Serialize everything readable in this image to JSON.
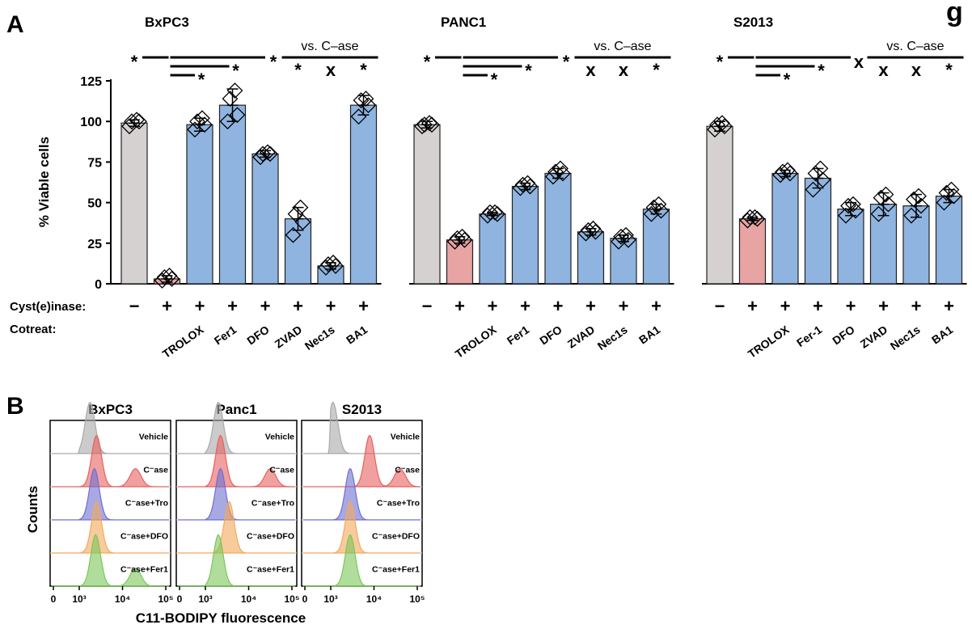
{
  "panel_a_letter": "A",
  "panel_b_letter": "B",
  "corner_glyph": "g",
  "bar_colors": {
    "control": "#d5d1d0",
    "caseonly": "#e8a3a3",
    "cotreat": "#8fb4e0"
  },
  "row_labels": {
    "cyst": "Cyst(e)inase:",
    "cotreat": "Cotreat:"
  },
  "cyst_symbols": [
    "−",
    "+",
    "+",
    "+",
    "+",
    "+",
    "+",
    "+"
  ],
  "vs_label": "vs. C–ase",
  "chart_data": [
    {
      "type": "bar",
      "title": "BxPC3",
      "ylabel": "% Viable cells",
      "ylim": [
        0,
        125
      ],
      "yticks": [
        "0",
        "25",
        "50",
        "75",
        "100",
        "125"
      ],
      "categories": [
        "",
        "",
        "TROLOX",
        "Fer1",
        "DFO",
        "ZVAD",
        "Nec1s",
        "BA1"
      ],
      "values": [
        99,
        3,
        98,
        110,
        80,
        40,
        11,
        110
      ],
      "errors": [
        2,
        2,
        4,
        10,
        2,
        7,
        2,
        6
      ],
      "points": [
        [
          97,
          100,
          100,
          101
        ],
        [
          2,
          3,
          4,
          5
        ],
        [
          95,
          98,
          100,
          102
        ],
        [
          100,
          104,
          114,
          119
        ],
        [
          78,
          80,
          80,
          81
        ],
        [
          30,
          38,
          43,
          47
        ],
        [
          10,
          11,
          12,
          13
        ],
        [
          103,
          110,
          113,
          114
        ]
      ],
      "sig_left": [
        "*",
        "*",
        "*",
        "*"
      ],
      "sig_right": [
        "*",
        "x",
        "*"
      ]
    },
    {
      "type": "bar",
      "title": "PANC1",
      "ylim": [
        0,
        125
      ],
      "categories": [
        "",
        "",
        "TROLOX",
        "Fer1",
        "DFO",
        "ZVAD",
        "Nec1s",
        "BA1"
      ],
      "values": [
        98,
        27,
        43,
        60,
        68,
        32,
        28,
        46
      ],
      "errors": [
        2,
        2,
        1,
        2,
        3,
        2,
        2,
        3
      ],
      "points": [
        [
          97,
          98,
          98,
          99
        ],
        [
          26,
          27,
          28,
          29
        ],
        [
          42,
          43,
          44,
          44
        ],
        [
          59,
          60,
          61,
          62
        ],
        [
          66,
          68,
          69,
          71
        ],
        [
          31,
          32,
          33,
          34
        ],
        [
          26,
          27,
          29,
          30
        ],
        [
          43,
          45,
          47,
          49
        ]
      ],
      "sig_left": [
        "*",
        "*",
        "*",
        "*"
      ],
      "sig_right": [
        "x",
        "x",
        "*"
      ]
    },
    {
      "type": "bar",
      "title": "S2013",
      "ylim": [
        0,
        125
      ],
      "categories": [
        "",
        "",
        "TROLOX",
        "Fer-1",
        "DFO",
        "ZVAD",
        "Nec1s",
        "BA1"
      ],
      "values": [
        97,
        40,
        68,
        65,
        46,
        49,
        48,
        54
      ],
      "errors": [
        3,
        1,
        2,
        6,
        4,
        7,
        7,
        4
      ],
      "points": [
        [
          95,
          97,
          98,
          99
        ],
        [
          39,
          40,
          41,
          41
        ],
        [
          67,
          68,
          69,
          70
        ],
        [
          58,
          64,
          68,
          71
        ],
        [
          42,
          45,
          48,
          49
        ],
        [
          43,
          49,
          53,
          55
        ],
        [
          42,
          48,
          52,
          54
        ],
        [
          50,
          54,
          56,
          58
        ]
      ],
      "sig_left": [
        "*",
        "*",
        "*",
        "x"
      ],
      "sig_right": [
        "x",
        "x",
        "*"
      ]
    }
  ],
  "panel_b": {
    "titles": [
      "BxPC3",
      "Panc1",
      "S2013"
    ],
    "ylabel": "Counts",
    "xlabel": "C11-BODIPY fluorescence",
    "xticks": [
      "0",
      "10³",
      "10⁴",
      "10⁵"
    ],
    "rows": [
      "Vehicle",
      "C⁻ase",
      "C⁻ase+Tro",
      "C⁻ase+DFO",
      "C⁻ase+Fer1"
    ],
    "colors": [
      "#a9a9a9",
      "#e86060",
      "#6e6fd0",
      "#f3a95a",
      "#7bc65a"
    ],
    "peaks": [
      [
        3.25,
        3.4,
        3.35,
        3.4,
        3.38
      ],
      [
        3.3,
        3.35,
        3.35,
        3.55,
        3.3
      ],
      [
        3.05,
        3.9,
        3.45,
        3.45,
        3.45
      ]
    ],
    "second_peaks": [
      [
        null,
        4.3,
        null,
        null,
        4.3
      ],
      [
        null,
        4.5,
        null,
        null,
        null
      ],
      [
        null,
        4.6,
        null,
        null,
        null
      ]
    ]
  }
}
